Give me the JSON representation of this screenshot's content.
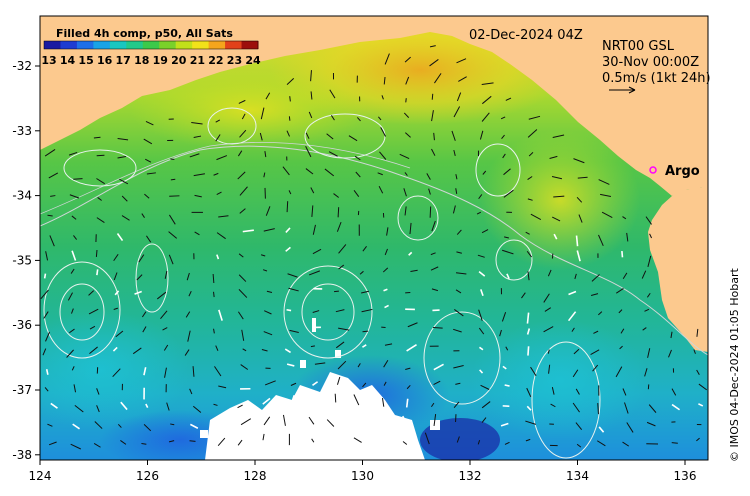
{
  "colorbar": {
    "title": "Filled 4h comp, p50, All Sats",
    "labels": [
      "13",
      "14",
      "15",
      "16",
      "17",
      "18",
      "19",
      "20",
      "21",
      "22",
      "23",
      "24"
    ],
    "colors": [
      "#1a1aa0",
      "#1e3cd2",
      "#1f6fe8",
      "#1aa3e6",
      "#19c7c0",
      "#22c98a",
      "#3cc94a",
      "#7ad12a",
      "#c2e01a",
      "#f2e21a",
      "#f5a51c",
      "#e2421a",
      "#9c0f0c"
    ]
  },
  "date_label": "02-Dec-2024 04Z",
  "info": {
    "line1": "NRT00 GSL",
    "line2": "30-Nov 00:00Z",
    "line3": "0.5m/s (1kt 24h)"
  },
  "argo_label": "Argo",
  "credit": "© IMOS 04-Dec-2024 01:05 Hobart",
  "axes": {
    "x_ticks": [
      "124",
      "126",
      "128",
      "130",
      "132",
      "134",
      "136"
    ],
    "y_ticks": [
      "-32",
      "-33",
      "-34",
      "-35",
      "-36",
      "-37",
      "-38"
    ]
  },
  "colors": {
    "land": "#fcc98e",
    "ocean_base": "#36bb6c",
    "argo_marker": "#ff00ff",
    "cloud": "#ffffff"
  }
}
